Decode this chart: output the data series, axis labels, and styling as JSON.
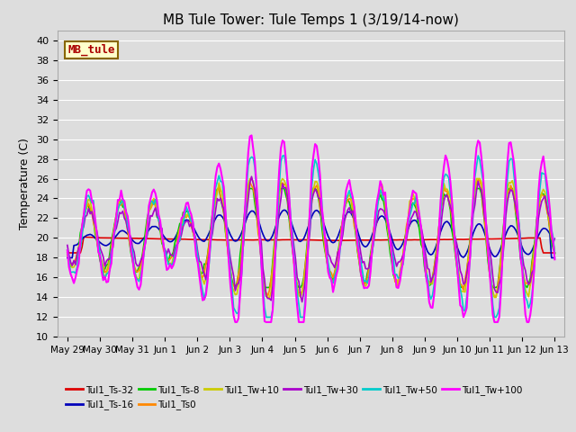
{
  "title": "MB Tule Tower: Tule Temps 1 (3/19/14-now)",
  "ylabel": "Temperature (C)",
  "xlim_start": -0.3,
  "xlim_end": 15.3,
  "ylim": [
    10,
    41
  ],
  "yticks": [
    10,
    12,
    14,
    16,
    18,
    20,
    22,
    24,
    26,
    28,
    30,
    32,
    34,
    36,
    38,
    40
  ],
  "xtick_labels": [
    "May 29",
    "May 30",
    "May 31",
    "Jun 1",
    "Jun 2",
    "Jun 3",
    "Jun 4",
    "Jun 5",
    "Jun 6",
    "Jun 7",
    "Jun 8",
    "Jun 9",
    "Jun 10",
    "Jun 11",
    "Jun 12",
    "Jun 13"
  ],
  "xtick_positions": [
    0,
    1,
    2,
    3,
    4,
    5,
    6,
    7,
    8,
    9,
    10,
    11,
    12,
    13,
    14,
    15
  ],
  "bg_color": "#dddddd",
  "grid_color": "#ffffff",
  "series": [
    {
      "label": "Tul1_Ts-32",
      "color": "#dd0000",
      "lw": 1.2
    },
    {
      "label": "Tul1_Ts-16",
      "color": "#0000bb",
      "lw": 1.2
    },
    {
      "label": "Tul1_Ts-8",
      "color": "#00cc00",
      "lw": 1.2
    },
    {
      "label": "Tul1_Ts0",
      "color": "#ff8800",
      "lw": 1.2
    },
    {
      "label": "Tul1_Tw+10",
      "color": "#cccc00",
      "lw": 1.2
    },
    {
      "label": "Tul1_Tw+30",
      "color": "#aa00cc",
      "lw": 1.2
    },
    {
      "label": "Tul1_Tw+50",
      "color": "#00cccc",
      "lw": 1.2
    },
    {
      "label": "Tul1_Tw+100",
      "color": "#ff00ff",
      "lw": 1.5
    }
  ],
  "legend_box": {
    "text": "MB_tule",
    "bg": "#ffffcc",
    "edge": "#886600",
    "text_color": "#aa0000",
    "fontsize": 9
  },
  "title_fontsize": 11,
  "axis_label_fontsize": 9,
  "tick_fontsize": 8
}
